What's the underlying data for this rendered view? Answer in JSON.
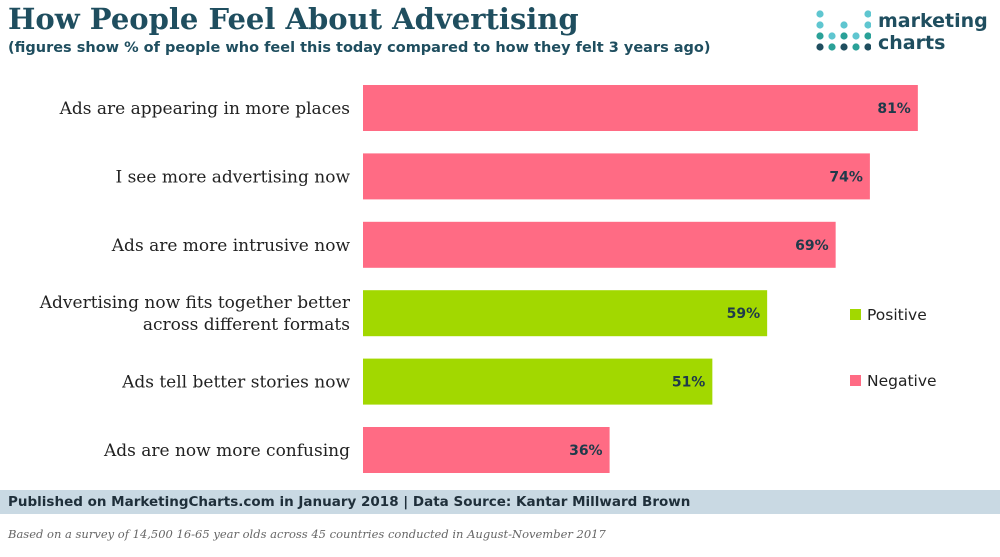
{
  "header": {
    "title": "How People Feel About Advertising",
    "subtitle": "(figures show % of people who feel this today compared to how they felt 3 years ago)"
  },
  "logo": {
    "line1": "marketing",
    "line2": "charts"
  },
  "chart_data": {
    "type": "bar",
    "orientation": "horizontal",
    "categories": [
      [
        "Ads are appearing in more places"
      ],
      [
        "I see more advertising now"
      ],
      [
        "Ads are more intrusive now"
      ],
      [
        "Advertising now fits together better",
        "across different formats"
      ],
      [
        "Ads tell better stories now"
      ],
      [
        "Ads are now more confusing"
      ]
    ],
    "values": [
      81,
      74,
      69,
      59,
      51,
      36
    ],
    "value_labels": [
      "81%",
      "74%",
      "69%",
      "59%",
      "51%",
      "36%"
    ],
    "bar_sentiment": [
      "Negative",
      "Negative",
      "Negative",
      "Positive",
      "Positive",
      "Negative"
    ],
    "legend": [
      {
        "name": "Positive",
        "color": "#a2d800"
      },
      {
        "name": "Negative",
        "color": "#ff6b84"
      }
    ],
    "legend_position": "right",
    "xlim": [
      0,
      100
    ],
    "grid": false
  },
  "footer": {
    "source": "Published on MarketingCharts.com in January 2018 | Data Source: Kantar Millward Brown",
    "note": "Based on a survey of 14,500 16-65 year olds across 45 countries conducted in August-November 2017"
  }
}
